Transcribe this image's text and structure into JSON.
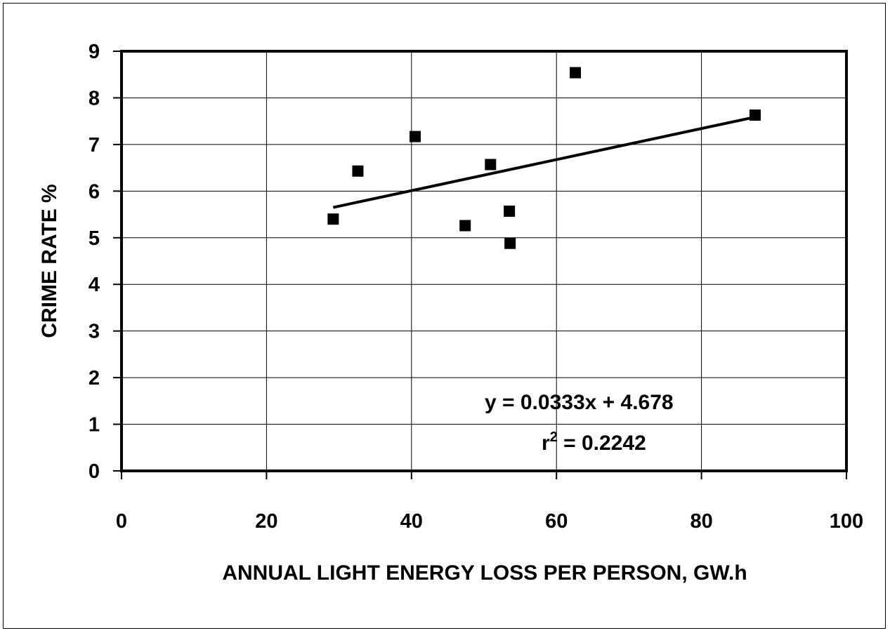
{
  "chart_data": {
    "type": "scatter",
    "title": "",
    "xlabel": "ANNUAL LIGHT ENERGY LOSS PER PERSON,  GW.h",
    "ylabel": "CRIME RATE %",
    "xlim": [
      0,
      100
    ],
    "ylim": [
      0,
      9
    ],
    "xticks": [
      0,
      20,
      40,
      60,
      80,
      100
    ],
    "yticks": [
      0,
      1,
      2,
      3,
      4,
      5,
      6,
      7,
      8,
      9
    ],
    "grid": true,
    "legend": "none",
    "marker": "square",
    "marker_color": "#000000",
    "points": [
      {
        "x": 29.2,
        "y": 5.4
      },
      {
        "x": 32.6,
        "y": 6.43
      },
      {
        "x": 40.5,
        "y": 7.17
      },
      {
        "x": 47.4,
        "y": 5.26
      },
      {
        "x": 50.9,
        "y": 6.57
      },
      {
        "x": 53.5,
        "y": 5.57
      },
      {
        "x": 53.6,
        "y": 4.88
      },
      {
        "x": 62.6,
        "y": 8.54
      },
      {
        "x": 87.4,
        "y": 7.63
      }
    ],
    "trendline": {
      "slope": 0.0333,
      "intercept": 4.678,
      "x_range": [
        29.2,
        87.4
      ]
    },
    "annotations": {
      "equation": "y = 0.0333x + 4.678",
      "r_label": "r",
      "r_exponent": "2",
      "r_value": " = 0.2242"
    }
  }
}
